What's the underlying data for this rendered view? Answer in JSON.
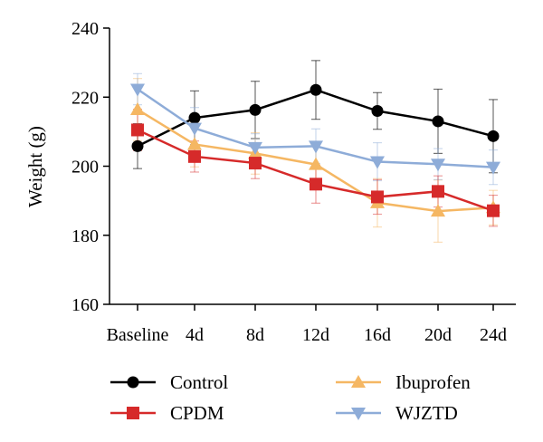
{
  "chart_data": {
    "type": "line",
    "title": "",
    "xlabel": "",
    "ylabel": "Weight (g)",
    "ylim": [
      160,
      240
    ],
    "yticks": [
      160,
      180,
      200,
      220,
      240
    ],
    "categories": [
      "Baseline",
      "4d",
      "8d",
      "12d",
      "16d",
      "20d",
      "24d"
    ],
    "grid": false,
    "legend_position": "bottom",
    "series": [
      {
        "name": "Control",
        "color": "#000000",
        "marker": "circle",
        "values": [
          205.8,
          214.0,
          216.3,
          222.1,
          216.0,
          213.0,
          208.7
        ],
        "errors": [
          6.5,
          7.8,
          8.3,
          8.5,
          5.3,
          9.3,
          10.6
        ]
      },
      {
        "name": "CPDM",
        "color": "#d62a2a",
        "marker": "square",
        "values": [
          210.5,
          202.8,
          200.9,
          194.8,
          191.1,
          192.7,
          187.1
        ],
        "errors": [
          6.0,
          4.5,
          4.5,
          5.5,
          5.0,
          4.5,
          4.5
        ]
      },
      {
        "name": "Ibuprofen",
        "color": "#f5b763",
        "marker": "triangle-up",
        "values": [
          216.4,
          206.3,
          203.7,
          200.5,
          189.4,
          187.0,
          188.0
        ],
        "errors": [
          9.0,
          6.5,
          6.0,
          6.0,
          7.0,
          9.0,
          5.0
        ]
      },
      {
        "name": "WJZTD",
        "color": "#8eacd8",
        "marker": "triangle-down",
        "values": [
          222.3,
          211.0,
          205.4,
          205.8,
          201.3,
          200.6,
          199.7
        ],
        "errors": [
          4.5,
          6.0,
          4.0,
          5.0,
          5.5,
          4.5,
          5.0
        ]
      }
    ]
  }
}
